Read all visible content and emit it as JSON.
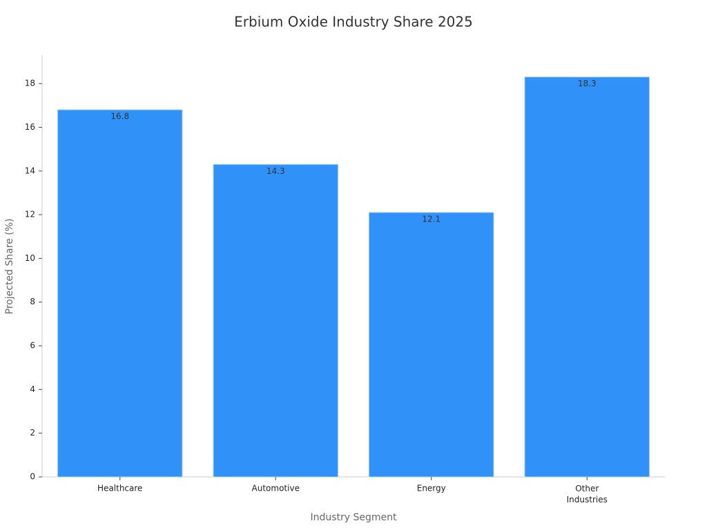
{
  "chart_data": {
    "type": "bar",
    "title": "Erbium Oxide Industry Share 2025",
    "x_label": "Industry Segment",
    "y_label": "Projected Share (%)",
    "categories": [
      "Healthcare",
      "Automotive",
      "Energy",
      "Other Industries"
    ],
    "values": [
      16.8,
      14.3,
      12.1,
      18.3
    ],
    "color": "#3092f8",
    "ylim": [
      0,
      19.3
    ],
    "yticks": [
      0,
      2,
      4,
      6,
      8,
      10,
      12,
      14,
      16,
      18
    ],
    "grid": false
  }
}
